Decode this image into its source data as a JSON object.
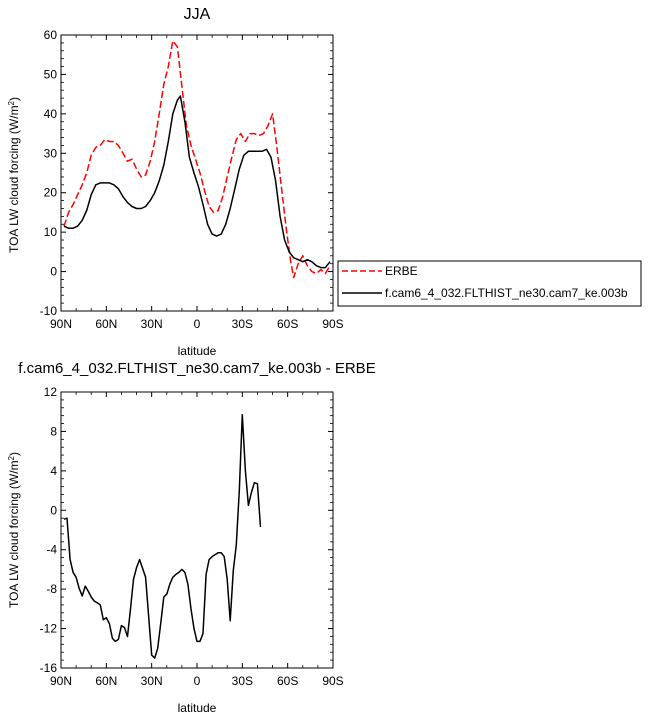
{
  "chart_data": [
    {
      "type": "line",
      "title": "JJA",
      "xlabel": "latitude",
      "ylabel_main": "TOA LW cloud forcing (W/m",
      "ylabel_sup": "2",
      "ylabel_end": ")",
      "xlim": [
        -90,
        90
      ],
      "ylim": [
        -10,
        60
      ],
      "xticks": [
        {
          "value": -90,
          "label": "90N"
        },
        {
          "value": -60,
          "label": "60N"
        },
        {
          "value": -30,
          "label": "30N"
        },
        {
          "value": 0,
          "label": "0"
        },
        {
          "value": 30,
          "label": "30S"
        },
        {
          "value": 60,
          "label": "60S"
        },
        {
          "value": 90,
          "label": "90S"
        }
      ],
      "yticks": [
        -10,
        0,
        10,
        20,
        30,
        40,
        50,
        60
      ],
      "legend_position": "right",
      "series": [
        {
          "name": "ERBE",
          "color": "#ff0000",
          "dash": "dashed",
          "points": [
            [
              -88,
              11.5
            ],
            [
              -85,
              15
            ],
            [
              -82,
              17
            ],
            [
              -79,
              19.5
            ],
            [
              -76,
              22
            ],
            [
              -73,
              25
            ],
            [
              -70,
              29.5
            ],
            [
              -67,
              31.5
            ],
            [
              -64,
              32
            ],
            [
              -61,
              33.5
            ],
            [
              -58,
              33
            ],
            [
              -55,
              33
            ],
            [
              -52,
              32
            ],
            [
              -49,
              30
            ],
            [
              -46,
              28
            ],
            [
              -43,
              28.5
            ],
            [
              -40,
              26
            ],
            [
              -37,
              24
            ],
            [
              -34,
              24.5
            ],
            [
              -31,
              28
            ],
            [
              -28,
              33
            ],
            [
              -25,
              40
            ],
            [
              -22,
              47.5
            ],
            [
              -19,
              52
            ],
            [
              -16,
              58.5
            ],
            [
              -13,
              57
            ],
            [
              -10,
              47
            ],
            [
              -7,
              37
            ],
            [
              -4,
              32
            ],
            [
              -1,
              28.5
            ],
            [
              2,
              25
            ],
            [
              5,
              20.5
            ],
            [
              8,
              16.5
            ],
            [
              11,
              15
            ],
            [
              14,
              15.5
            ],
            [
              17,
              19
            ],
            [
              20,
              24
            ],
            [
              23,
              29
            ],
            [
              26,
              33.5
            ],
            [
              29,
              35
            ],
            [
              32,
              33
            ],
            [
              35,
              35
            ],
            [
              38,
              35
            ],
            [
              41,
              34.5
            ],
            [
              44,
              35
            ],
            [
              47,
              37
            ],
            [
              50,
              40
            ],
            [
              53,
              31
            ],
            [
              56,
              21
            ],
            [
              59,
              11
            ],
            [
              62,
              2.5
            ],
            [
              64,
              -1.5
            ],
            [
              67,
              2
            ],
            [
              70,
              4
            ],
            [
              73,
              1.5
            ],
            [
              76,
              0
            ],
            [
              79,
              -0.5
            ],
            [
              82,
              0.5
            ],
            [
              85,
              -0.5
            ],
            [
              88,
              1.5
            ]
          ]
        },
        {
          "name": "f.cam6_4_032.FLTHIST_ne30.cam7_ke.003b",
          "color": "#000000",
          "dash": "solid",
          "points": [
            [
              -88,
              11.5
            ],
            [
              -85,
              11
            ],
            [
              -82,
              11
            ],
            [
              -79,
              11.5
            ],
            [
              -76,
              13
            ],
            [
              -73,
              15.5
            ],
            [
              -70,
              19.5
            ],
            [
              -67,
              22
            ],
            [
              -64,
              22.5
            ],
            [
              -61,
              22.5
            ],
            [
              -58,
              22.5
            ],
            [
              -55,
              22
            ],
            [
              -52,
              21
            ],
            [
              -49,
              19
            ],
            [
              -46,
              17.5
            ],
            [
              -43,
              16.5
            ],
            [
              -40,
              16
            ],
            [
              -37,
              16
            ],
            [
              -34,
              16.5
            ],
            [
              -31,
              18
            ],
            [
              -28,
              20
            ],
            [
              -25,
              23
            ],
            [
              -22,
              27
            ],
            [
              -19,
              33
            ],
            [
              -16,
              40
            ],
            [
              -13,
              43.5
            ],
            [
              -11,
              44.5
            ],
            [
              -8,
              38
            ],
            [
              -5,
              29
            ],
            [
              -2,
              25
            ],
            [
              1,
              21.5
            ],
            [
              4,
              17
            ],
            [
              7,
              12
            ],
            [
              10,
              9.5
            ],
            [
              13,
              9
            ],
            [
              16,
              9.5
            ],
            [
              19,
              12
            ],
            [
              22,
              16
            ],
            [
              25,
              21
            ],
            [
              28,
              26
            ],
            [
              31,
              29.5
            ],
            [
              34,
              30.5
            ],
            [
              37,
              30.5
            ],
            [
              40,
              30.5
            ],
            [
              43,
              30.5
            ],
            [
              46,
              31
            ],
            [
              49,
              29
            ],
            [
              52,
              23
            ],
            [
              55,
              14
            ],
            [
              58,
              8
            ],
            [
              61,
              5
            ],
            [
              64,
              3.5
            ],
            [
              67,
              3
            ],
            [
              70,
              2.5
            ],
            [
              73,
              3
            ],
            [
              76,
              2.5
            ],
            [
              79,
              1.5
            ],
            [
              82,
              1
            ],
            [
              85,
              1
            ],
            [
              88,
              2.5
            ]
          ]
        }
      ]
    },
    {
      "type": "line",
      "title": "f.cam6_4_032.FLTHIST_ne30.cam7_ke.003b - ERBE",
      "xlabel": "latitude",
      "ylabel_main": "TOA LW cloud forcing (W/m",
      "ylabel_sup": "2",
      "ylabel_end": ")",
      "xlim": [
        -90,
        90
      ],
      "ylim": [
        -16,
        12
      ],
      "xticks": [
        {
          "value": -90,
          "label": "90N"
        },
        {
          "value": -60,
          "label": "60N"
        },
        {
          "value": -30,
          "label": "30N"
        },
        {
          "value": 0,
          "label": "0"
        },
        {
          "value": 30,
          "label": "30S"
        },
        {
          "value": 60,
          "label": "60S"
        },
        {
          "value": 90,
          "label": "90S"
        }
      ],
      "yticks": [
        -16,
        -12,
        -8,
        -4,
        0,
        4,
        8,
        12
      ],
      "series": [
        {
          "color": "#000000",
          "dash": "solid",
          "points": [
            [
              -88,
              -0.9
            ],
            [
              -86,
              -0.8
            ],
            [
              -84,
              -5
            ],
            [
              -82,
              -6.3
            ],
            [
              -80,
              -6.8
            ],
            [
              -78,
              -7.9
            ],
            [
              -76,
              -8.7
            ],
            [
              -74,
              -7.7
            ],
            [
              -72,
              -8.2
            ],
            [
              -70,
              -8.8
            ],
            [
              -68,
              -9.2
            ],
            [
              -66,
              -9.4
            ],
            [
              -64,
              -9.6
            ],
            [
              -62,
              -11.1
            ],
            [
              -60,
              -10.9
            ],
            [
              -58,
              -11.5
            ],
            [
              -56,
              -13
            ],
            [
              -54,
              -13.3
            ],
            [
              -52,
              -13.1
            ],
            [
              -50,
              -11.7
            ],
            [
              -48,
              -11.9
            ],
            [
              -46,
              -12.8
            ],
            [
              -44,
              -10
            ],
            [
              -42,
              -7
            ],
            [
              -40,
              -5.8
            ],
            [
              -38,
              -5
            ],
            [
              -36,
              -5.9
            ],
            [
              -34,
              -6.8
            ],
            [
              -32,
              -10.7
            ],
            [
              -30,
              -14.7
            ],
            [
              -28,
              -15
            ],
            [
              -26,
              -14
            ],
            [
              -24,
              -11.5
            ],
            [
              -22,
              -8.8
            ],
            [
              -20,
              -8.5
            ],
            [
              -18,
              -7.5
            ],
            [
              -16,
              -6.8
            ],
            [
              -14,
              -6.5
            ],
            [
              -12,
              -6.3
            ],
            [
              -10,
              -6
            ],
            [
              -8,
              -6.3
            ],
            [
              -6,
              -7.5
            ],
            [
              -4,
              -10
            ],
            [
              -2,
              -12
            ],
            [
              0,
              -13.3
            ],
            [
              2,
              -13.3
            ],
            [
              4,
              -12.5
            ],
            [
              6,
              -6.5
            ],
            [
              8,
              -5
            ],
            [
              10,
              -4.7
            ],
            [
              12,
              -4.5
            ],
            [
              14,
              -4.3
            ],
            [
              16,
              -4.3
            ],
            [
              18,
              -4.7
            ],
            [
              20,
              -7
            ],
            [
              22,
              -11.2
            ],
            [
              24,
              -6.1
            ],
            [
              26,
              -3.5
            ],
            [
              28,
              2
            ],
            [
              30,
              9.7
            ],
            [
              32,
              4
            ],
            [
              34,
              0.5
            ],
            [
              36,
              1.8
            ],
            [
              38,
              2.8
            ],
            [
              40,
              2.7
            ],
            [
              42,
              -1.7
            ]
          ]
        }
      ]
    }
  ]
}
